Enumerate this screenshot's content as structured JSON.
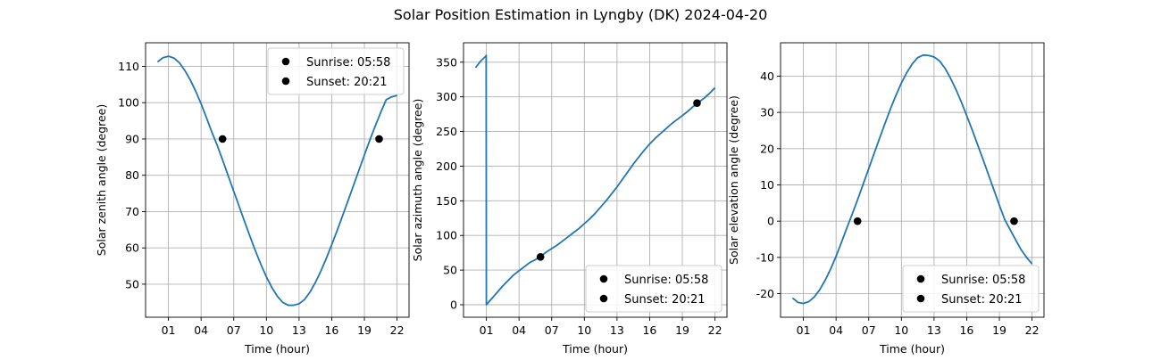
{
  "figure": {
    "title": "Solar Position Estimation in Lyngby (DK) 2024-04-20",
    "line_color": "#1f77b4",
    "marker_color": "#000000",
    "grid_color": "#b0b0b0"
  },
  "chart_data": [
    {
      "type": "line",
      "name": "zenith",
      "xlabel": "Time (hour)",
      "ylabel": "Solar zenith angle (degree)",
      "xlim": [
        -1.1,
        23.1
      ],
      "ylim": [
        40.9,
        116.5
      ],
      "xticks": [
        1,
        4,
        7,
        10,
        13,
        16,
        19,
        22
      ],
      "xtick_labels": [
        "01",
        "04",
        "07",
        "10",
        "13",
        "16",
        "19",
        "22"
      ],
      "yticks": [
        50,
        60,
        70,
        80,
        90,
        100,
        110
      ],
      "grid": true,
      "legend_loc": "upper-right",
      "x": [
        0,
        0.5,
        1,
        1.5,
        2,
        2.5,
        3,
        3.5,
        4,
        4.5,
        5,
        5.5,
        6,
        6.5,
        7,
        7.5,
        8,
        8.5,
        9,
        9.5,
        10,
        10.5,
        11,
        11.5,
        12,
        12.5,
        13,
        13.5,
        14,
        14.5,
        15,
        15.5,
        16,
        16.5,
        17,
        17.5,
        18,
        18.5,
        19,
        19.5,
        20,
        20.5,
        21,
        21.5,
        22
      ],
      "y": [
        111.2,
        112.4,
        112.8,
        112.3,
        111.0,
        108.9,
        106.3,
        103.2,
        99.7,
        95.8,
        91.8,
        88.1,
        84.0,
        79.8,
        75.6,
        71.4,
        67.2,
        63.1,
        59.1,
        55.4,
        52.0,
        49.1,
        46.7,
        45.0,
        44.2,
        44.2,
        44.6,
        45.8,
        47.8,
        50.5,
        53.6,
        57.1,
        60.9,
        64.8,
        68.9,
        73.0,
        77.2,
        81.4,
        85.6,
        89.7,
        93.6,
        97.3,
        100.8,
        101.6,
        102.0
      ],
      "markers": [
        {
          "label": "Sunrise: 05:58",
          "x": 5.97,
          "y": 90
        },
        {
          "label": "Sunset: 20:21",
          "x": 20.35,
          "y": 90
        }
      ]
    },
    {
      "type": "line",
      "name": "azimuth",
      "xlabel": "Time (hour)",
      "ylabel": "Solar azimuth angle (degree)",
      "xlim": [
        -1.1,
        23.1
      ],
      "ylim": [
        -18,
        378
      ],
      "xticks": [
        1,
        4,
        7,
        10,
        13,
        16,
        19,
        22
      ],
      "xtick_labels": [
        "01",
        "04",
        "07",
        "10",
        "13",
        "16",
        "19",
        "22"
      ],
      "yticks": [
        0,
        50,
        100,
        150,
        200,
        250,
        300,
        350
      ],
      "grid": true,
      "legend_loc": "lower-right",
      "x": [
        0,
        0.5,
        0.97,
        0.98,
        1.0,
        1.5,
        2,
        2.5,
        3,
        3.5,
        4,
        4.5,
        5,
        5.5,
        6,
        6.5,
        7,
        7.5,
        8,
        8.5,
        9,
        9.5,
        10,
        10.5,
        11,
        11.5,
        12,
        12.5,
        13,
        13.5,
        14,
        14.5,
        15,
        15.5,
        16,
        16.5,
        17,
        17.5,
        18,
        18.5,
        19,
        19.5,
        20,
        20.5,
        21,
        21.5,
        22
      ],
      "y": [
        342,
        352,
        359,
        360,
        0,
        9,
        18,
        27,
        35,
        43,
        49,
        55,
        61,
        65,
        70,
        76,
        81,
        86,
        92,
        98,
        104,
        110,
        117,
        124,
        132,
        141,
        150,
        160,
        170,
        181,
        192,
        203,
        213,
        223,
        232,
        240,
        247,
        254,
        261,
        267,
        273,
        279,
        286,
        292,
        298,
        305,
        313
      ],
      "markers": [
        {
          "label": "Sunrise: 05:58",
          "x": 5.97,
          "y": 69
        },
        {
          "label": "Sunset: 20:21",
          "x": 20.35,
          "y": 291
        }
      ]
    },
    {
      "type": "line",
      "name": "elevation",
      "xlabel": "Time (hour)",
      "ylabel": "Solar elevation angle (degree)",
      "xlim": [
        -1.1,
        23.1
      ],
      "ylim": [
        -26.5,
        49.2
      ],
      "xticks": [
        1,
        4,
        7,
        10,
        13,
        16,
        19,
        22
      ],
      "xtick_labels": [
        "01",
        "04",
        "07",
        "10",
        "13",
        "16",
        "19",
        "22"
      ],
      "yticks": [
        -20,
        -10,
        0,
        10,
        20,
        30,
        40
      ],
      "grid": true,
      "legend_loc": "lower-right",
      "x": [
        0,
        0.5,
        1,
        1.5,
        2,
        2.5,
        3,
        3.5,
        4,
        4.5,
        5,
        5.5,
        6,
        6.5,
        7,
        7.5,
        8,
        8.5,
        9,
        9.5,
        10,
        10.5,
        11,
        11.5,
        12,
        12.5,
        13,
        13.5,
        14,
        14.5,
        15,
        15.5,
        16,
        16.5,
        17,
        17.5,
        18,
        18.5,
        19,
        19.5,
        20,
        20.5,
        21,
        21.5,
        22
      ],
      "y": [
        -21.2,
        -22.4,
        -22.7,
        -22.2,
        -20.9,
        -18.9,
        -16.3,
        -13.2,
        -9.7,
        -5.8,
        -1.8,
        2.1,
        6.1,
        10.3,
        14.5,
        18.7,
        22.9,
        27.0,
        31.0,
        34.7,
        38.1,
        41.0,
        43.4,
        45.1,
        45.8,
        45.7,
        45.3,
        44.2,
        42.2,
        39.5,
        36.4,
        32.9,
        29.1,
        25.2,
        21.1,
        17.0,
        12.8,
        8.6,
        4.4,
        0.4,
        -2.4,
        -5.2,
        -7.9,
        -10.0,
        -11.8
      ],
      "markers": [
        {
          "label": "Sunrise: 05:58",
          "x": 5.97,
          "y": 0
        },
        {
          "label": "Sunset: 20:21",
          "x": 20.35,
          "y": 0
        }
      ]
    }
  ]
}
